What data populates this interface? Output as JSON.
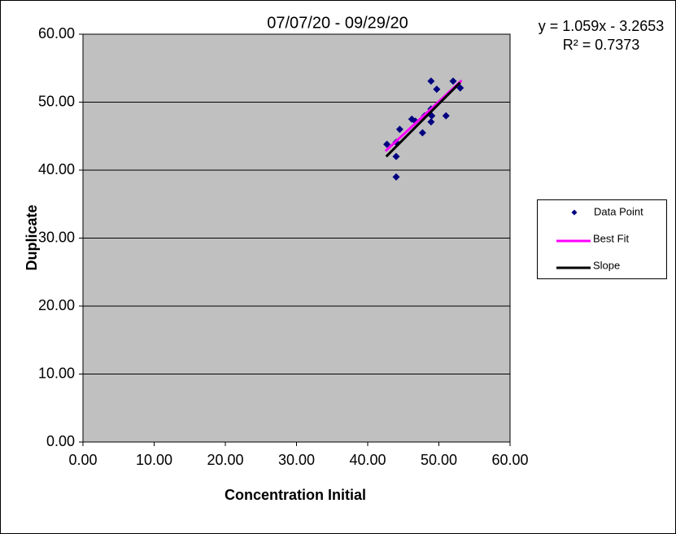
{
  "chart_data": {
    "type": "scatter",
    "title": "07/07/20 - 09/29/20",
    "annotations": [
      "y = 1.059x - 3.2653",
      "R² = 0.7373"
    ],
    "x_label": "Concentration Initial",
    "y_label": "Duplicate",
    "xlim": [
      0,
      60
    ],
    "ylim": [
      0,
      60
    ],
    "xticks": [
      {
        "value": 0,
        "label": "0.00"
      },
      {
        "value": 10,
        "label": "10.00"
      },
      {
        "value": 20,
        "label": "20.00"
      },
      {
        "value": 30,
        "label": "30.00"
      },
      {
        "value": 40,
        "label": "40.00"
      },
      {
        "value": 50,
        "label": "50.00"
      },
      {
        "value": 60,
        "label": "60.00"
      }
    ],
    "yticks": [
      {
        "value": 0,
        "label": "0.00"
      },
      {
        "value": 10,
        "label": "10.00"
      },
      {
        "value": 20,
        "label": "20.00"
      },
      {
        "value": 30,
        "label": "30.00"
      },
      {
        "value": 40,
        "label": "40.00"
      },
      {
        "value": 50,
        "label": "50.00"
      },
      {
        "value": 60,
        "label": "60.00"
      }
    ],
    "grid": true,
    "legend": "right",
    "series": [
      {
        "name": "Data Point",
        "color": "#000080",
        "mode": "markers",
        "x": [
          42.7,
          44.0,
          44.0,
          44.0,
          44.5,
          46.2,
          46.7,
          47.7,
          48.0,
          48.9,
          48.9,
          48.9,
          49.0,
          49.7,
          51.0,
          52.0,
          53.0
        ],
        "values": [
          43.8,
          42.0,
          39.0,
          44.1,
          46.0,
          47.5,
          47.2,
          45.5,
          48.0,
          53.1,
          49.0,
          47.1,
          48.0,
          51.9,
          48.0,
          53.1,
          52.1
        ]
      },
      {
        "name": "Best Fit",
        "color": "#ff00ff",
        "mode": "line",
        "x": [
          42.5,
          53.2
        ],
        "values": [
          42.8,
          53.2
        ]
      },
      {
        "name": "Slope",
        "color": "#000000",
        "mode": "line",
        "x": [
          42.6,
          53.0
        ],
        "values": [
          42.0,
          52.9
        ]
      }
    ]
  }
}
